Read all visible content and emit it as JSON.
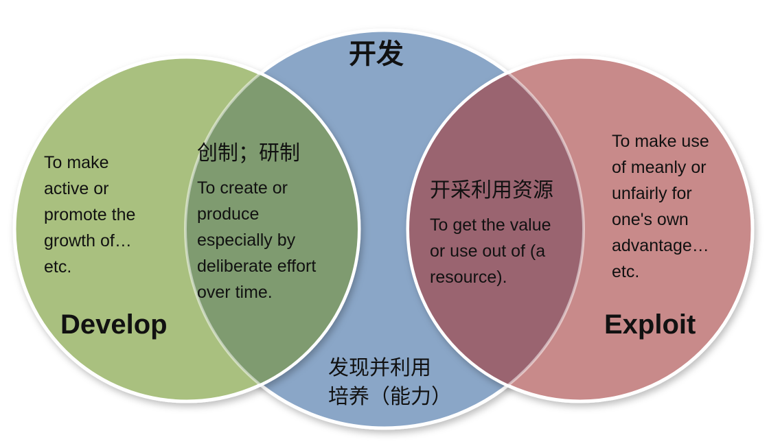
{
  "colors": {
    "develop_circle": "#a9c07f",
    "develop_overlap": "#7f9b70",
    "kaifa_circle": "#8aa6c7",
    "exploit_overlap": "#9a6470",
    "exploit_circle": "#c88a8a",
    "circle_border": "#ffffff"
  },
  "circles": {
    "develop": {
      "title": "Develop",
      "description_lines": [
        "To make",
        "active or",
        "promote the",
        "growth of…",
        "etc."
      ]
    },
    "kaifa": {
      "title": "开发",
      "bottom_lines": [
        "发现并利用",
        "培养（能力）"
      ]
    },
    "exploit": {
      "title": "Exploit",
      "description_lines": [
        "To make use",
        "of meanly or",
        "unfairly for",
        "one's own",
        "advantage…",
        "etc."
      ]
    }
  },
  "overlaps": {
    "develop_kaifa": {
      "heading": "创制；研制",
      "description_lines": [
        "To create or",
        "produce",
        "especially by",
        "deliberate effort",
        "over time."
      ]
    },
    "kaifa_exploit": {
      "heading": "开采利用资源",
      "description_lines": [
        "To get the value",
        "or use out of (a",
        "resource)."
      ]
    }
  }
}
